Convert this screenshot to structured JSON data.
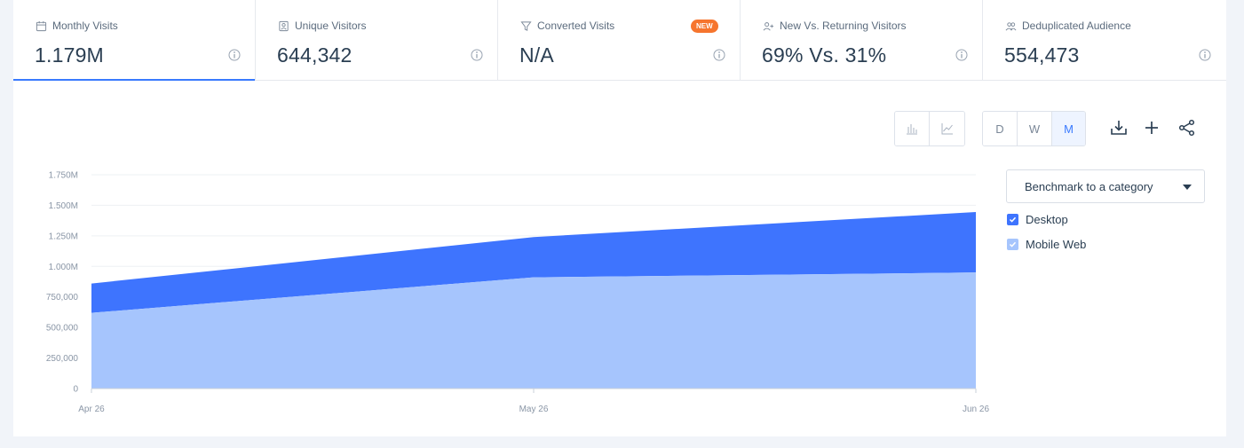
{
  "metrics": [
    {
      "title": "Monthly Visits",
      "value": "1.179M",
      "icon": "calendar-icon"
    },
    {
      "title": "Unique Visitors",
      "value": "644,342",
      "icon": "id-card-icon"
    },
    {
      "title": "Converted Visits",
      "value": "N/A",
      "icon": "funnel-icon",
      "badge": "NEW"
    },
    {
      "title": "New Vs. Returning Visitors",
      "value": "69% Vs. 31%",
      "icon": "user-plus-icon"
    },
    {
      "title": "Deduplicated Audience",
      "value": "554,473",
      "icon": "users-icon"
    }
  ],
  "granularity": {
    "day": "D",
    "week": "W",
    "month": "M",
    "selected": "M"
  },
  "benchmark": {
    "label": "Benchmark to a category"
  },
  "colors": {
    "desktop": "#3e74fe",
    "mobile": "#a6c5fd",
    "accent": "#3a7afe",
    "badge": "#f6752e"
  },
  "chart_data": {
    "type": "area",
    "stacked": true,
    "categories": [
      "Apr 26",
      "May 26",
      "Jun 26"
    ],
    "series": [
      {
        "name": "Mobile Web",
        "values": [
          620000,
          910000,
          950000
        ]
      },
      {
        "name": "Desktop",
        "values": [
          240000,
          330000,
          495000
        ]
      }
    ],
    "ylim": [
      0,
      1750000
    ],
    "yticks": [
      "0",
      "250,000",
      "500,000",
      "750,000",
      "1.000M",
      "1.250M",
      "1.500M",
      "1.750M"
    ],
    "legend": [
      {
        "name": "Desktop",
        "checked": true
      },
      {
        "name": "Mobile Web",
        "checked": true
      }
    ],
    "legend_position": "right",
    "grid": true
  }
}
